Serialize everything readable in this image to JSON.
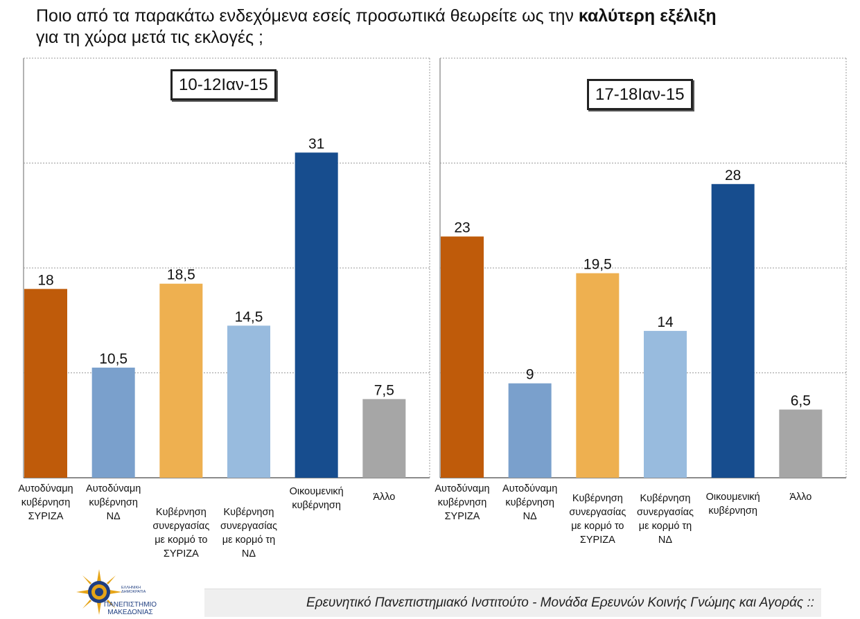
{
  "title": {
    "text_before": "Ποιο από τα παρακάτω ενδεχόμενα εσείς προσωπικά θεωρείτε ως την ",
    "bold": "καλύτερη εξέλιξη",
    "line2": "για τη χώρα μετά τις εκλογές ;"
  },
  "chart_data": [
    {
      "type": "bar",
      "period_label": "10-12Ιαν-15",
      "categories": [
        "Αυτοδύναμη κυβέρνηση ΣΥΡΙΖΑ",
        "Αυτοδύναμη κυβέρνηση ΝΔ",
        "Κυβέρνηση συνεργασίας με κορμό το ΣΥΡΙΖΑ",
        "Κυβέρνηση συνεργασίας με κορμό τη ΝΔ",
        "Οικουμενική κυβέρνηση",
        "Άλλο"
      ],
      "category_lines": [
        [
          "Αυτοδύναμη",
          "κυβέρνηση",
          "ΣΥΡΙΖΑ"
        ],
        [
          "Αυτοδύναμη",
          "κυβέρνηση",
          "ΝΔ"
        ],
        [
          "Κυβέρνηση",
          "συνεργασίας",
          "με κορμό το",
          "ΣΥΡΙΖΑ"
        ],
        [
          "Κυβέρνηση",
          "συνεργασίας",
          "με κορμό τη",
          "ΝΔ"
        ],
        [
          "Οικουμενική",
          "κυβέρνηση"
        ],
        [
          "Άλλο"
        ]
      ],
      "values": [
        18,
        10.5,
        18.5,
        14.5,
        31,
        7.5
      ],
      "value_labels": [
        "18",
        "10,5",
        "18,5",
        "14,5",
        "31",
        "7,5"
      ],
      "ylim": [
        0,
        40
      ],
      "grid": true
    },
    {
      "type": "bar",
      "period_label": "17-18Ιαν-15",
      "categories": [
        "Αυτοδύναμη κυβέρνηση ΣΥΡΙΖΑ",
        "Αυτοδύναμη κυβέρνηση ΝΔ",
        "Κυβέρνηση συνεργασίας με κορμό το ΣΥΡΙΖΑ",
        "Κυβέρνηση συνεργασίας με κορμό τη ΝΔ",
        "Οικουμενική κυβέρνηση",
        "Άλλο"
      ],
      "category_lines": [
        [
          "Αυτοδύναμη",
          "κυβέρνηση",
          "ΣΥΡΙΖΑ"
        ],
        [
          "Αυτοδύναμη",
          "κυβέρνηση",
          "ΝΔ"
        ],
        [
          "Κυβέρνηση",
          "συνεργασίας",
          "με κορμό το",
          "ΣΥΡΙΖΑ"
        ],
        [
          "Κυβέρνηση",
          "συνεργασίας",
          "με κορμό τη",
          "ΝΔ"
        ],
        [
          "Οικουμενική",
          "κυβέρνηση"
        ],
        [
          "Άλλο"
        ]
      ],
      "values": [
        23,
        9,
        19.5,
        14,
        28,
        6.5
      ],
      "value_labels": [
        "23",
        "9",
        "19,5",
        "14",
        "28",
        "6,5"
      ],
      "ylim": [
        0,
        40
      ],
      "grid": true
    }
  ],
  "colors": [
    "#bf5b0a",
    "#7aa0cc",
    "#eeb050",
    "#98bbde",
    "#174d8e",
    "#a6a6a6"
  ],
  "footer": {
    "text": "Ερευνητικό Πανεπιστημιακό Ινστιτούτο - Μονάδα Ερευνών Κοινής Γνώμης και Αγοράς ::"
  },
  "logo": {
    "label_line1": "ΠΑΝΕΠΙΣΤΗΜΙΟ",
    "label_line2": "ΜΑΚΕΔΟΝΙΑΣ",
    "small_line1": "ΕΛΛΗΝΙΚΗ",
    "small_line2": "ΔΗΜΟΚΡΑΤΙΑ"
  }
}
